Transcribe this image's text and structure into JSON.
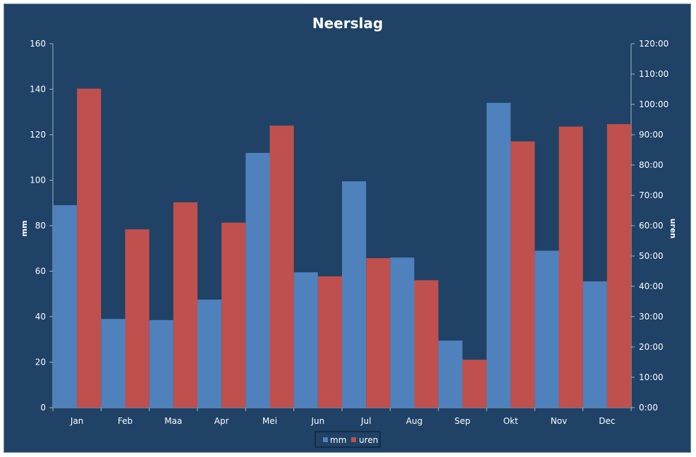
{
  "chart_data": {
    "type": "bar",
    "title": "Neerslag",
    "categories": [
      "Jan",
      "Feb",
      "Maa",
      "Apr",
      "Mei",
      "Jun",
      "Jul",
      "Aug",
      "Sep",
      "Okt",
      "Nov",
      "Dec"
    ],
    "series": [
      {
        "name": "mm",
        "axis": "left",
        "color": "#4f81bd",
        "values": [
          89,
          39,
          38.5,
          47.5,
          112,
          59.5,
          99.5,
          66,
          29.5,
          134,
          69,
          55.5
        ]
      },
      {
        "name": "uren",
        "axis": "right",
        "color": "#c0504d",
        "values_hours": [
          105.2,
          58.8,
          67.7,
          61.0,
          93.0,
          43.3,
          49.3,
          42.0,
          15.8,
          87.8,
          92.7,
          93.5
        ]
      }
    ],
    "ylabel": "mm",
    "ylim": [
      0,
      160
    ],
    "yticks": [
      "0",
      "20",
      "40",
      "60",
      "80",
      "100",
      "120",
      "140",
      "160"
    ],
    "y2label": "uren",
    "y2lim_hours": [
      0,
      120
    ],
    "y2ticks": [
      "0:00",
      "10:00",
      "20:00",
      "30:00",
      "40:00",
      "50:00",
      "60:00",
      "70:00",
      "80:00",
      "90:00",
      "100:00",
      "110:00",
      "120:00"
    ],
    "grid": false,
    "legend_position": "bottom",
    "colors": {
      "background": "#1f4266",
      "axis": "#a6b6c8",
      "text": "#ffffff"
    }
  }
}
